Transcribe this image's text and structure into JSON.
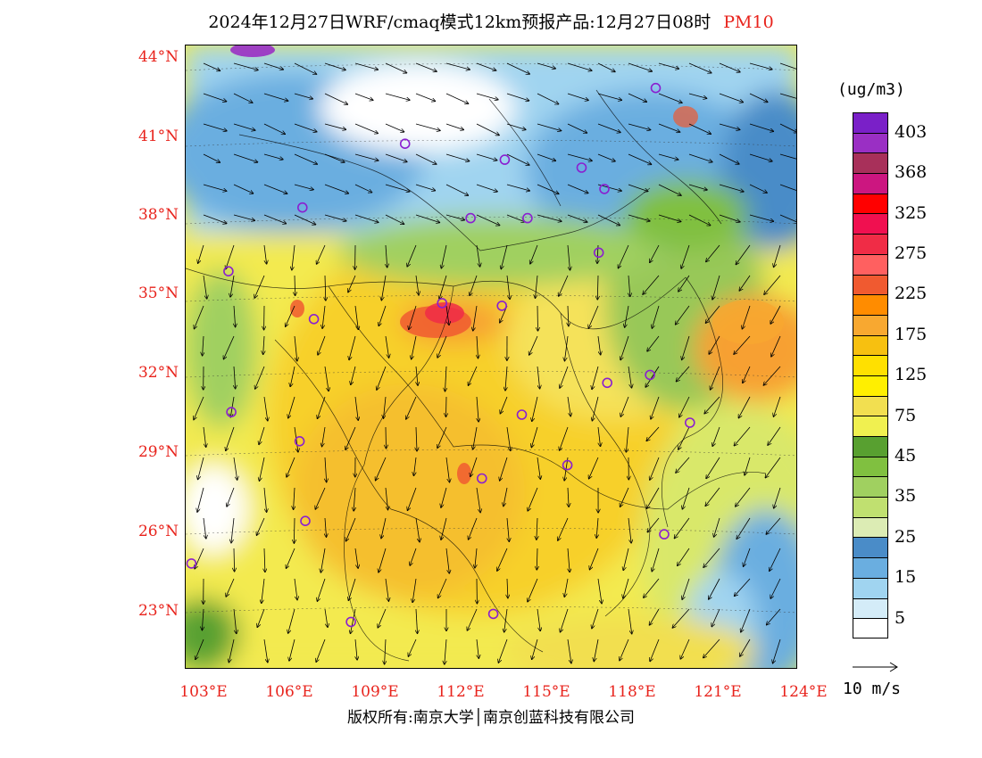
{
  "title": {
    "text": "2024年12月27日WRF/cmaq模式12km预报产品:12月27日08时",
    "pollutant": "PM10"
  },
  "map": {
    "lat_labels": [
      "44°N",
      "41°N",
      "38°N",
      "35°N",
      "32°N",
      "29°N",
      "26°N",
      "23°N"
    ],
    "lon_labels": [
      "103°E",
      "106°E",
      "109°E",
      "112°E",
      "115°E",
      "118°E",
      "121°E",
      "124°E"
    ],
    "lat_range": [
      21,
      44.5
    ],
    "lon_range": [
      102.5,
      124
    ],
    "station_markers": [
      {
        "lon": 110.2,
        "lat": 40.8
      },
      {
        "lon": 106.6,
        "lat": 38.4
      },
      {
        "lon": 112.5,
        "lat": 38.0
      },
      {
        "lon": 113.7,
        "lat": 40.2
      },
      {
        "lon": 114.5,
        "lat": 38.0
      },
      {
        "lon": 116.4,
        "lat": 39.9
      },
      {
        "lon": 117.2,
        "lat": 39.1
      },
      {
        "lon": 119.0,
        "lat": 42.9
      },
      {
        "lon": 104.0,
        "lat": 36.0
      },
      {
        "lon": 107.0,
        "lat": 34.2
      },
      {
        "lon": 111.5,
        "lat": 34.8
      },
      {
        "lon": 113.6,
        "lat": 34.7
      },
      {
        "lon": 117.0,
        "lat": 36.7
      },
      {
        "lon": 117.3,
        "lat": 31.8
      },
      {
        "lon": 118.8,
        "lat": 32.1
      },
      {
        "lon": 120.2,
        "lat": 30.3
      },
      {
        "lon": 114.3,
        "lat": 30.6
      },
      {
        "lon": 112.9,
        "lat": 28.2
      },
      {
        "lon": 115.9,
        "lat": 28.7
      },
      {
        "lon": 119.3,
        "lat": 26.1
      },
      {
        "lon": 104.1,
        "lat": 30.7
      },
      {
        "lon": 106.5,
        "lat": 29.6
      },
      {
        "lon": 106.7,
        "lat": 26.6
      },
      {
        "lon": 102.7,
        "lat": 25.0
      },
      {
        "lon": 108.3,
        "lat": 22.8
      },
      {
        "lon": 113.3,
        "lat": 23.1
      }
    ]
  },
  "colorbar": {
    "unit": "(ug/m3)",
    "colors": [
      "#7a20c8",
      "#9a2fc4",
      "#a8305a",
      "#cc1680",
      "#ff0000",
      "#f01050",
      "#f02c46",
      "#ff6060",
      "#f05a30",
      "#ff8c00",
      "#f8a830",
      "#f7c010",
      "#ffe000",
      "#ffef00",
      "#f2df50",
      "#f0f050",
      "#58a030",
      "#80c040",
      "#a0d060",
      "#c0e070",
      "#dcecb4",
      "#4a8cc8",
      "#6aaee0",
      "#a0d4f0",
      "#d4ecf8",
      "#ffffff"
    ],
    "labels": [
      "403",
      "368",
      "325",
      "275",
      "225",
      "175",
      "125",
      "75",
      "45",
      "35",
      "25",
      "15",
      "5"
    ]
  },
  "wind_reference": {
    "label": "10 m/s"
  },
  "copyright": "版权所有:南京大学│南京创蓝科技有限公司"
}
